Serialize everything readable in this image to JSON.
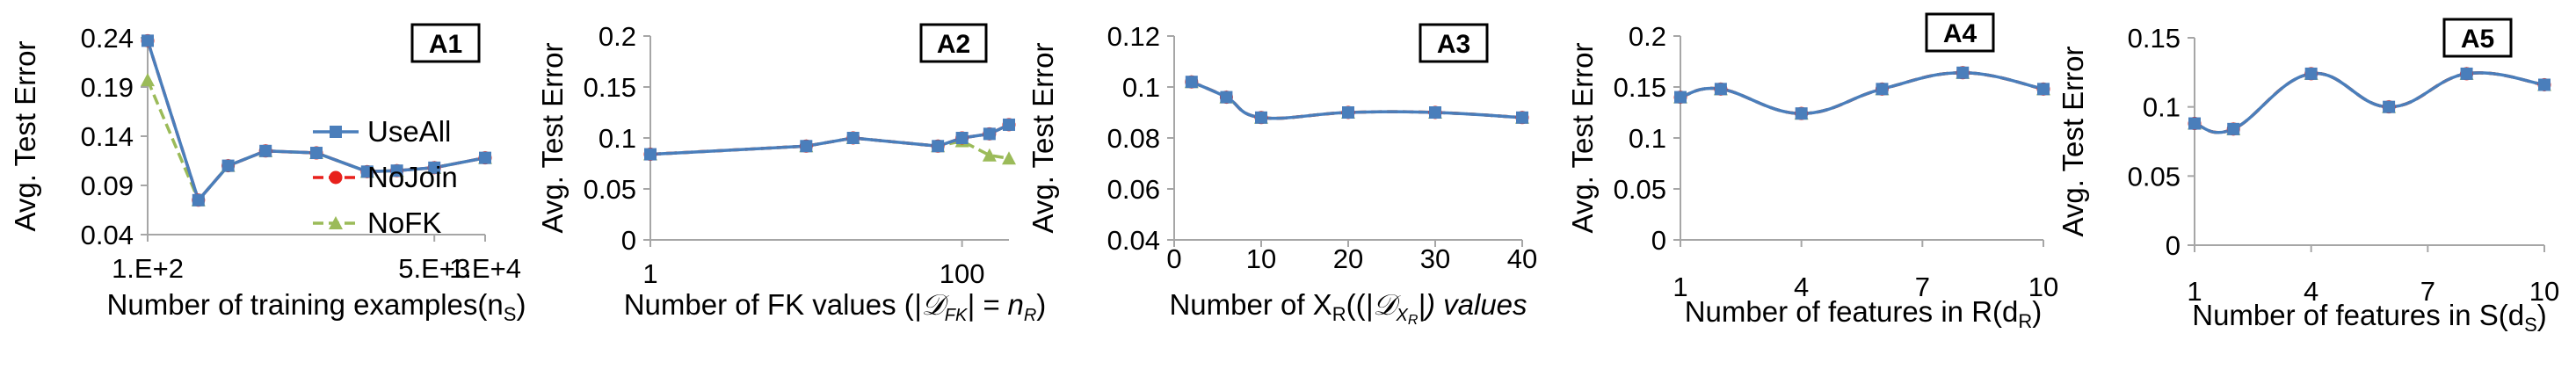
{
  "colors": {
    "UseAll": "#4a7ebb",
    "NoJoin": "#e8211c",
    "NoFK": "#9bbb59",
    "axis": "#a6a6a6"
  },
  "chart_data": [
    {
      "type": "line",
      "panel_label": "A1",
      "xlabel_pre": "Number of training examples(n",
      "xlabel_sub": "S",
      "xlabel_post": ")",
      "ylabel": "Avg. Test Error",
      "x_scale": "log",
      "xlim": [
        100,
        10000
      ],
      "x_ticks": [
        100,
        5000,
        10000
      ],
      "x_tick_labels": [
        "1.E+2",
        "5.E+3",
        "1.E+4"
      ],
      "ylim": [
        0.04,
        0.24
      ],
      "y_ticks": [
        0.04,
        0.09,
        0.14,
        0.19,
        0.24
      ],
      "y_tick_labels": [
        "0.04",
        "0.09",
        "0.14",
        "0.19",
        "0.24"
      ],
      "legend": [
        "UseAll",
        "NoJoin",
        "NoFK"
      ],
      "series": [
        {
          "name": "UseAll",
          "x": [
            100,
            200,
            300,
            500,
            1000,
            2000,
            3000,
            5000,
            10000
          ],
          "y": [
            0.237,
            0.075,
            0.11,
            0.125,
            0.123,
            0.104,
            0.105,
            0.108,
            0.118
          ]
        },
        {
          "name": "NoJoin",
          "x": [
            100,
            200,
            300,
            500,
            1000,
            2000,
            3000,
            5000,
            10000
          ],
          "y": [
            0.237,
            0.075,
            0.11,
            0.125,
            0.123,
            0.104,
            0.105,
            0.108,
            0.118
          ]
        },
        {
          "name": "NoFK",
          "x": [
            100,
            200,
            300,
            500,
            1000,
            2000,
            3000,
            5000,
            10000
          ],
          "y": [
            0.197,
            0.075,
            0.11,
            0.125,
            0.123,
            0.104,
            0.105,
            0.108,
            0.118
          ]
        }
      ]
    },
    {
      "type": "line",
      "panel_label": "A2",
      "xlabel_pre": "Number of FK values (",
      "xlabel_math": "|𝒟",
      "xlabel_math_sub": "FK",
      "xlabel_math_post": "| = n",
      "xlabel_math_sub2": "R",
      "xlabel_post": ")",
      "ylabel": "Avg. Test Error",
      "x_scale": "log",
      "xlim": [
        1,
        200
      ],
      "x_ticks": [
        1,
        100
      ],
      "x_tick_labels": [
        "1",
        "100"
      ],
      "ylim": [
        0,
        0.2
      ],
      "y_ticks": [
        0,
        0.05,
        0.1,
        0.15,
        0.2
      ],
      "y_tick_labels": [
        "0",
        "0.05",
        "0.1",
        "0.15",
        "0.2"
      ],
      "series": [
        {
          "name": "UseAll",
          "x": [
            1,
            10,
            20,
            70,
            100,
            150,
            200
          ],
          "y": [
            0.084,
            0.092,
            0.1,
            0.092,
            0.1,
            0.104,
            0.113
          ]
        },
        {
          "name": "NoJoin",
          "x": [
            1,
            10,
            20,
            70,
            100,
            150,
            200
          ],
          "y": [
            0.084,
            0.092,
            0.1,
            0.092,
            0.1,
            0.104,
            0.113
          ]
        },
        {
          "name": "NoFK",
          "x": [
            1,
            10,
            20,
            70,
            100,
            150,
            200
          ],
          "y": [
            0.084,
            0.092,
            0.1,
            0.092,
            0.097,
            0.083,
            0.08
          ]
        }
      ]
    },
    {
      "type": "line",
      "panel_label": "A3",
      "xlabel_pre": "Number of X",
      "xlabel_sub": "R",
      "xlabel_mid": "((",
      "xlabel_math": "|𝒟",
      "xlabel_math_sub": "X",
      "xlabel_math_sub2": "R",
      "xlabel_math_post": "|) values",
      "ylabel": "Avg. Test Error",
      "x_scale": "linear",
      "xlim": [
        0,
        40
      ],
      "x_ticks": [
        0,
        10,
        20,
        30,
        40
      ],
      "x_tick_labels": [
        "0",
        "10",
        "20",
        "30",
        "40"
      ],
      "ylim": [
        0.04,
        0.12
      ],
      "y_ticks": [
        0.04,
        0.06,
        0.08,
        0.1,
        0.12
      ],
      "y_tick_labels": [
        "0.04",
        "0.06",
        "0.08",
        "0.1",
        "0.12"
      ],
      "series": [
        {
          "name": "UseAll",
          "x": [
            2,
            6,
            10,
            20,
            30,
            40
          ],
          "y": [
            0.102,
            0.096,
            0.088,
            0.09,
            0.09,
            0.088
          ]
        },
        {
          "name": "NoJoin",
          "x": [
            2,
            6,
            10,
            20,
            30,
            40
          ],
          "y": [
            0.102,
            0.096,
            0.088,
            0.09,
            0.09,
            0.088
          ]
        },
        {
          "name": "NoFK",
          "x": [
            2,
            6,
            10,
            20,
            30,
            40
          ],
          "y": [
            0.102,
            0.096,
            0.088,
            0.09,
            0.09,
            0.088
          ]
        }
      ]
    },
    {
      "type": "line",
      "panel_label": "A4",
      "xlabel_pre": "Number of features in R(d",
      "xlabel_sub": "R",
      "xlabel_post": ")",
      "ylabel": "Avg. Test Error",
      "x_scale": "linear",
      "xlim": [
        1,
        10
      ],
      "x_ticks": [
        1,
        4,
        7,
        10
      ],
      "x_tick_labels": [
        "1",
        "4",
        "7",
        "10"
      ],
      "ylim": [
        0,
        0.2
      ],
      "y_ticks": [
        0,
        0.05,
        0.1,
        0.15,
        0.2
      ],
      "y_tick_labels": [
        "0",
        "0.05",
        "0.1",
        "0.15",
        "0.2"
      ],
      "series": [
        {
          "name": "UseAll",
          "x": [
            1,
            2,
            4,
            6,
            8,
            10
          ],
          "y": [
            0.14,
            0.148,
            0.124,
            0.148,
            0.164,
            0.148
          ]
        },
        {
          "name": "NoJoin",
          "x": [
            1,
            2,
            4,
            6,
            8,
            10
          ],
          "y": [
            0.14,
            0.148,
            0.124,
            0.148,
            0.164,
            0.148
          ]
        },
        {
          "name": "NoFK",
          "x": [
            1,
            2,
            4,
            6,
            8,
            10
          ],
          "y": [
            0.14,
            0.148,
            0.124,
            0.148,
            0.164,
            0.148
          ]
        }
      ]
    },
    {
      "type": "line",
      "panel_label": "A5",
      "xlabel_pre": "Number of features in S(d",
      "xlabel_sub": "S",
      "xlabel_post": ")",
      "ylabel": "Avg. Test Error",
      "x_scale": "linear",
      "xlim": [
        1,
        10
      ],
      "x_ticks": [
        1,
        4,
        7,
        10
      ],
      "x_tick_labels": [
        "1",
        "4",
        "7",
        "10"
      ],
      "ylim": [
        0,
        0.15
      ],
      "y_ticks": [
        0,
        0.05,
        0.1,
        0.15
      ],
      "y_tick_labels": [
        "0",
        "0.05",
        "0.1",
        "0.15"
      ],
      "series": [
        {
          "name": "UseAll",
          "x": [
            1,
            2,
            4,
            6,
            8,
            10
          ],
          "y": [
            0.088,
            0.084,
            0.124,
            0.1,
            0.124,
            0.116
          ]
        },
        {
          "name": "NoJoin",
          "x": [
            1,
            2,
            4,
            6,
            8,
            10
          ],
          "y": [
            0.088,
            0.084,
            0.124,
            0.1,
            0.124,
            0.116
          ]
        },
        {
          "name": "NoFK",
          "x": [
            1,
            2,
            4,
            6,
            8,
            10
          ],
          "y": [
            0.088,
            0.084,
            0.124,
            0.1,
            0.124,
            0.116
          ]
        }
      ]
    }
  ]
}
